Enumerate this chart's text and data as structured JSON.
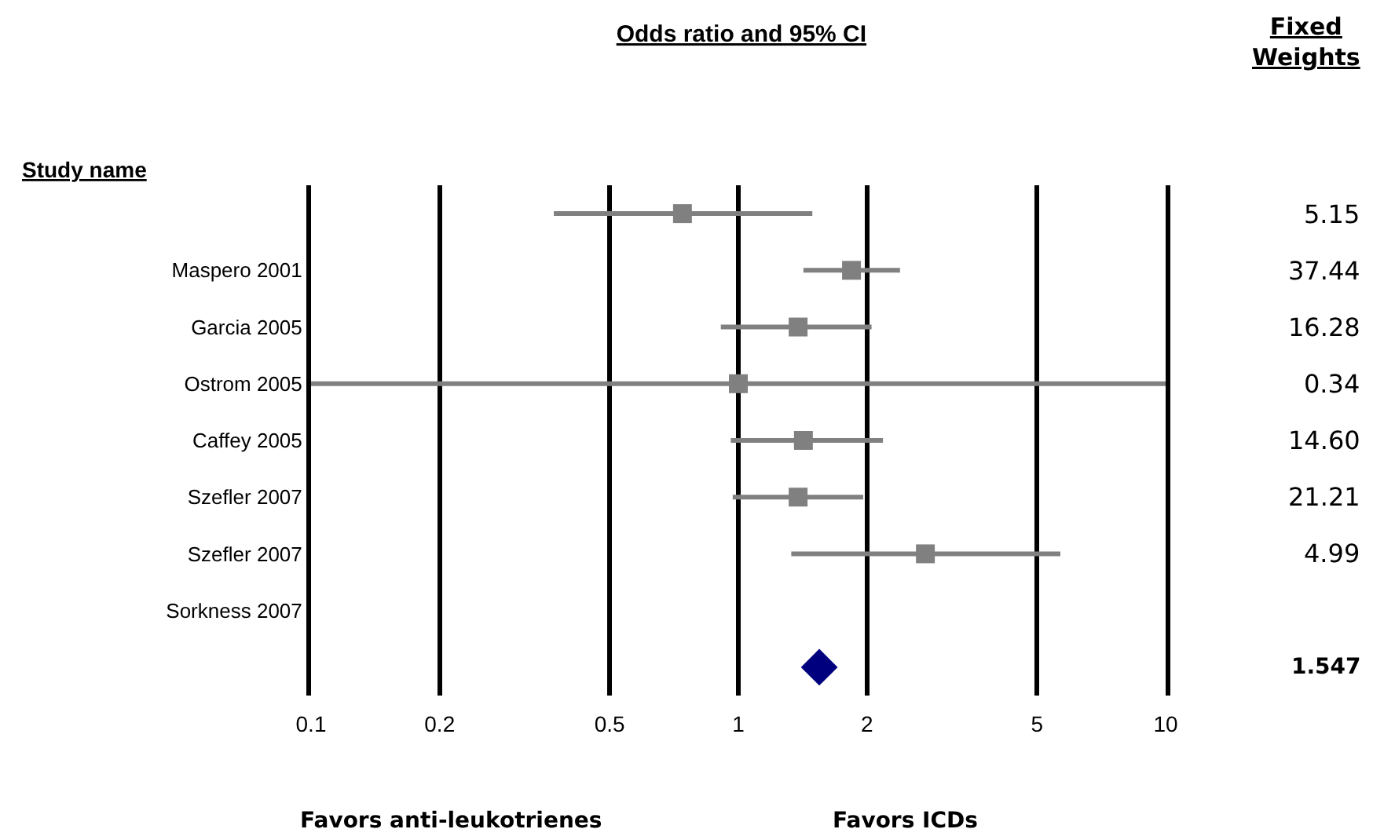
{
  "chart_data": {
    "type": "scatter",
    "orientation": "horizontal",
    "title": "Odds ratio and 95% CI",
    "ylabel": "Study name",
    "categories": [
      null,
      "Maspero 2001",
      "Garcia 2005",
      "Ostrom 2005",
      "Caffey 2005",
      "Szefler 2007",
      "Szefler 2007",
      "Sorkness 2007",
      null
    ],
    "series": [
      {
        "color": "#808080",
        "marker": "square",
        "values": [
          0.74,
          1.84,
          1.38,
          1.0,
          1.42,
          1.38,
          2.74,
          null,
          null
        ],
        "errors": [
          [
            0.37,
            1.49
          ],
          [
            1.42,
            2.39
          ],
          [
            0.91,
            2.05
          ],
          [
            0.1,
            10
          ],
          [
            0.96,
            2.18
          ],
          [
            0.97,
            1.96
          ],
          [
            1.33,
            5.67
          ],
          null,
          null
        ]
      },
      {
        "color": "#00007f",
        "marker": "diamond",
        "values": [
          null,
          null,
          null,
          null,
          null,
          null,
          null,
          null,
          1.547
        ]
      }
    ],
    "log": "x",
    "xlim": [
      0.1,
      10
    ],
    "xticks": [
      0.1,
      0.2,
      0.5,
      1,
      2,
      5,
      10
    ],
    "grid": "x",
    "legend": false,
    "annotations": [
      "Fixed Weights",
      "Favors anti-leukotrienes",
      "Favors ICDs",
      "5.15",
      "37.44",
      "16.28",
      "0.34",
      "14.60",
      "21.21",
      "4.99",
      "1.547"
    ]
  }
}
